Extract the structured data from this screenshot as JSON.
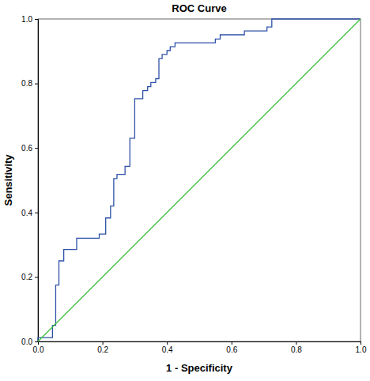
{
  "chart_data": {
    "type": "line",
    "title": "ROC Curve",
    "x_label": "1 - Specificity",
    "y_label": "Sensitivity",
    "xlim": [
      0,
      1
    ],
    "ylim": [
      0,
      1
    ],
    "xticks": [
      {
        "value": 0,
        "label": "0.0"
      },
      0.2,
      0.4,
      0.6,
      0.8,
      {
        "value": 1,
        "label": "1.0"
      }
    ],
    "yticks": [
      {
        "value": 0,
        "label": "0.0"
      },
      0.2,
      0.4,
      0.6,
      0.8,
      {
        "value": 1,
        "label": "1.0"
      }
    ],
    "grid": false,
    "series": [
      {
        "color": "#2f52a8",
        "x": [
          0,
          0,
          0.045,
          0.045,
          0.055,
          0.055,
          0.065,
          0.065,
          0.08,
          0.08,
          0.12,
          0.12,
          0.19,
          0.19,
          0.21,
          0.21,
          0.225,
          0.225,
          0.235,
          0.235,
          0.245,
          0.245,
          0.27,
          0.27,
          0.285,
          0.285,
          0.3,
          0.3,
          0.325,
          0.325,
          0.34,
          0.34,
          0.35,
          0.35,
          0.365,
          0.365,
          0.375,
          0.375,
          0.385,
          0.385,
          0.4,
          0.4,
          0.41,
          0.41,
          0.425,
          0.425,
          0.55,
          0.55,
          0.565,
          0.565,
          0.64,
          0.64,
          0.71,
          0.71,
          0.725,
          0.725,
          1
        ],
        "values": [
          0,
          0.012,
          0.012,
          0.05,
          0.05,
          0.175,
          0.175,
          0.25,
          0.25,
          0.285,
          0.285,
          0.32,
          0.32,
          0.333,
          0.333,
          0.383,
          0.383,
          0.42,
          0.42,
          0.505,
          0.505,
          0.518,
          0.518,
          0.543,
          0.543,
          0.63,
          0.63,
          0.753,
          0.753,
          0.778,
          0.778,
          0.79,
          0.79,
          0.803,
          0.803,
          0.815,
          0.815,
          0.877,
          0.877,
          0.89,
          0.89,
          0.902,
          0.902,
          0.914,
          0.914,
          0.926,
          0.926,
          0.938,
          0.938,
          0.951,
          0.951,
          0.963,
          0.963,
          0.975,
          0.975,
          1,
          1
        ]
      },
      {
        "color": "#3cbf3c",
        "x": [
          0,
          1
        ],
        "values": [
          0,
          1
        ]
      }
    ]
  }
}
